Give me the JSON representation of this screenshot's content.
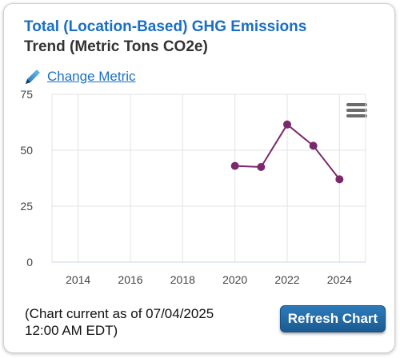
{
  "widget": {
    "title_line1": "Total (Location-Based) GHG Emissions",
    "title_line2": "Trend (Metric Tons CO2e)",
    "change_metric_label": "Change Metric",
    "footnote_line1": "(Chart current as of 07/04/2025",
    "footnote_line2": "12:00 AM EDT)",
    "refresh_label": "Refresh Chart",
    "accent_color": "#1a6fc4",
    "series_color": "#7a2a6c"
  },
  "chart_data": {
    "type": "line",
    "title": "",
    "xlabel": "",
    "ylabel": "",
    "xlim": [
      2013,
      2025
    ],
    "ylim": [
      0,
      75
    ],
    "x_ticks": [
      2014,
      2016,
      2018,
      2020,
      2022,
      2024
    ],
    "y_ticks": [
      0,
      25,
      50,
      75
    ],
    "grid": true,
    "legend": "none",
    "series": [
      {
        "x": [
          2020,
          2021,
          2022,
          2023,
          2024
        ],
        "values": [
          43,
          42.5,
          61.5,
          52,
          37
        ]
      }
    ]
  }
}
